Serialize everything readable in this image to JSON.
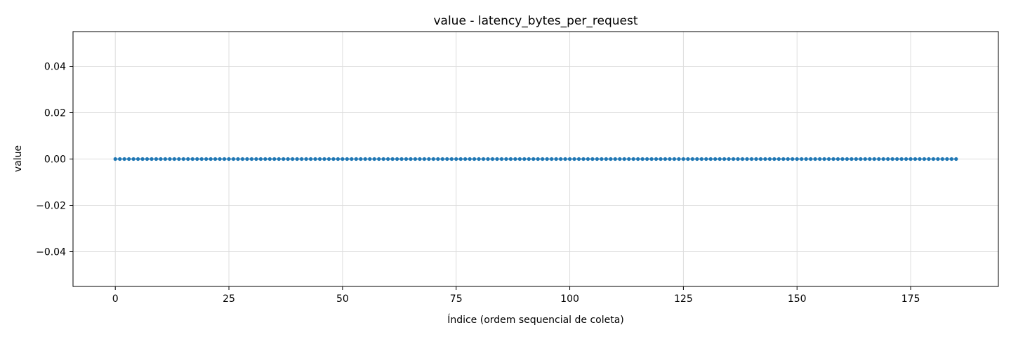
{
  "chart_data": {
    "type": "line",
    "title": "value - latency_bytes_per_request",
    "xlabel": "Índice (ordem sequencial de coleta)",
    "ylabel": "value",
    "xlim": [
      -9.3,
      194.3
    ],
    "ylim": [
      -0.055,
      0.055
    ],
    "x_ticks": [
      0,
      25,
      50,
      75,
      100,
      125,
      150,
      175
    ],
    "y_ticks": [
      -0.04,
      -0.02,
      0.0,
      0.02,
      0.04
    ],
    "y_tick_labels": [
      "−0.04",
      "−0.02",
      "0.00",
      "0.02",
      "0.04"
    ],
    "grid": true,
    "legend": "none",
    "series": [
      {
        "color": "#1f77b4",
        "marker": "circle",
        "x_start": 0,
        "x_end": 185,
        "x_step": 1,
        "constant_value": 0.0
      }
    ]
  }
}
